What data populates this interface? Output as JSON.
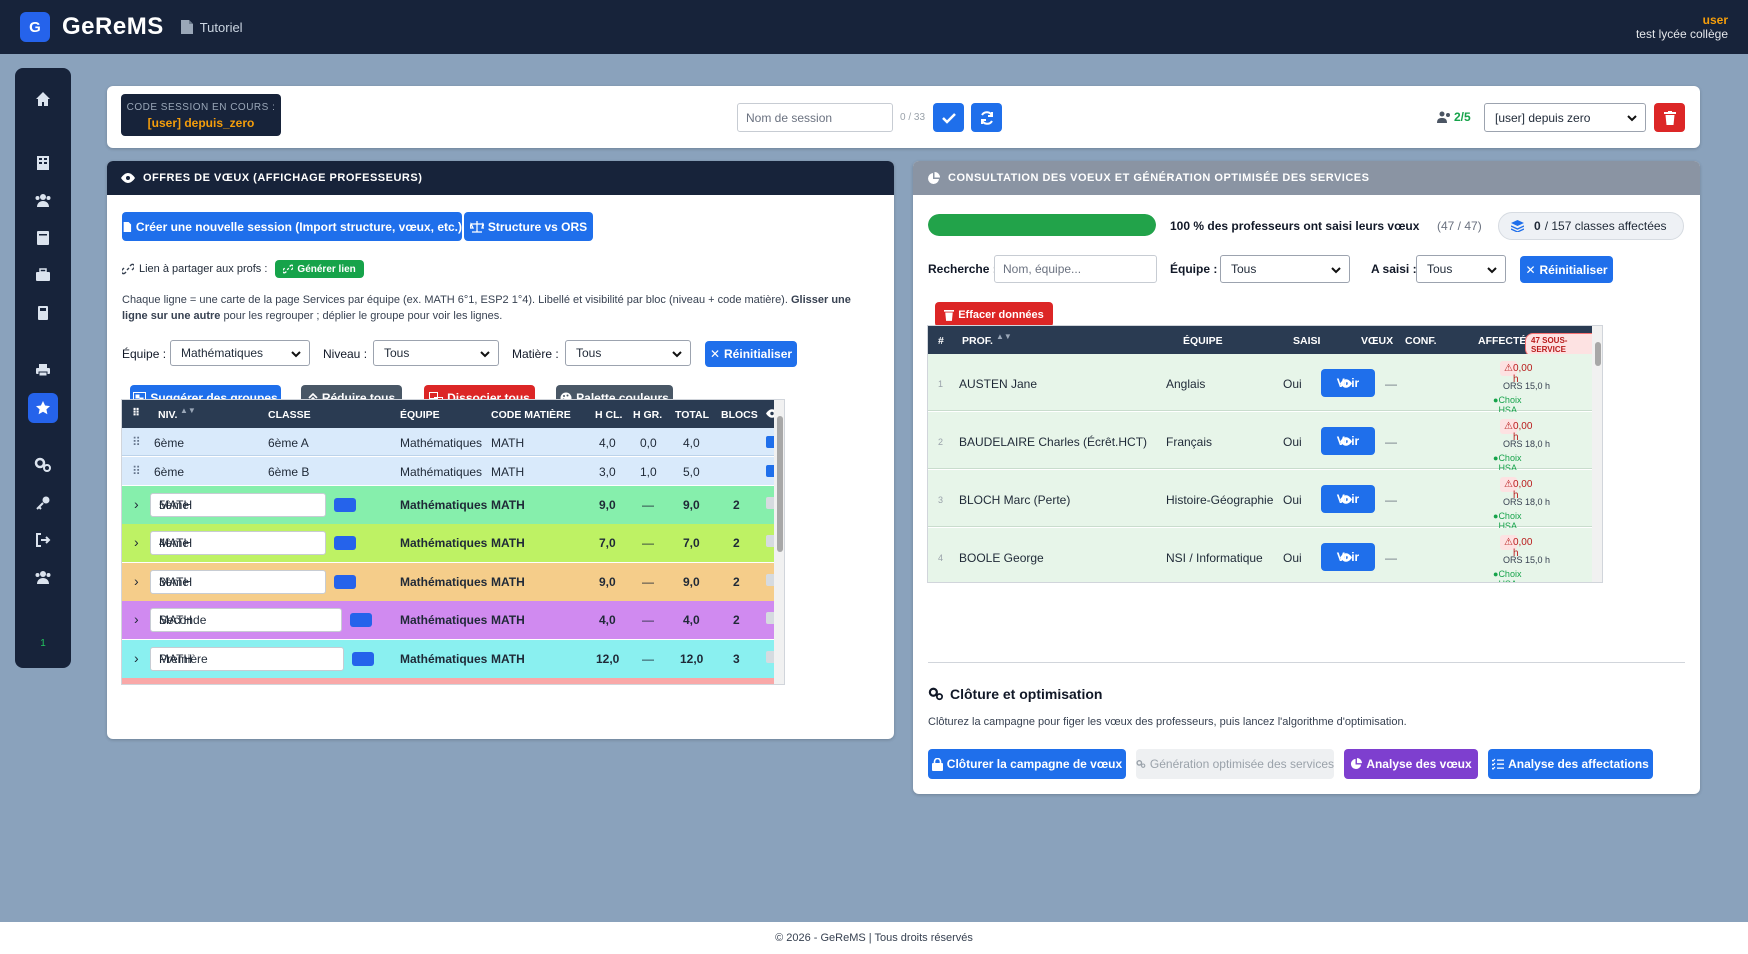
{
  "topbar": {
    "logo_letter": "G",
    "brand": "GeReMS",
    "tutorial": "Tutoriel",
    "user_name": "user",
    "user_school": "test lycée collège"
  },
  "sidebar": {
    "online_count": "1"
  },
  "session": {
    "code_label": "CODE SESSION EN COURS :",
    "code_value": "[user] depuis_zero",
    "name_placeholder": "Nom de session",
    "name_counter": "0 / 33",
    "users_count": "2/5",
    "selected_session": "[user] depuis zero"
  },
  "left_panel": {
    "title": "OFFRES DE VŒUX (AFFICHAGE PROFESSEURS)",
    "create_session_btn": "Créer une nouvelle session (Import structure, vœux, etc.)",
    "structure_btn": "Structure vs ORS",
    "share_label": "Lien à partager aux profs :",
    "generate_link_btn": "Générer lien",
    "help_1": "Chaque ligne = une carte de la page Services par équipe (ex. MATH 6°1, ESP2 1°4). Libellé et visibilité par bloc (niveau + code matière).",
    "help_bold_1": "Glisser une",
    "help_bold_2": "ligne sur une autre",
    "help_2": "pour les regrouper ; déplier le groupe pour voir les lignes.",
    "filters": {
      "equipe_label": "Équipe :",
      "equipe_value": "Mathématiques",
      "niveau_label": "Niveau :",
      "niveau_value": "Tous",
      "matiere_label": "Matière :",
      "matiere_value": "Tous",
      "reset_btn": "Réinitialiser"
    },
    "actions": {
      "suggest": "Suggérer des groupes",
      "collapse": "Réduire tous",
      "dissociate": "Dissocier tous",
      "palette": "Palette couleurs"
    },
    "table": {
      "headers": [
        "NIV.",
        "CLASSE",
        "ÉQUIPE",
        "CODE MATIÈRE",
        "H CL.",
        "H GR.",
        "TOTAL",
        "BLOCS"
      ],
      "rows": [
        {
          "niv": "6ème",
          "classe": "6ème A",
          "equipe": "Mathématiques",
          "code": "MATH",
          "hcl": "4,0",
          "hgr": "0,0",
          "total": "4,0"
        },
        {
          "niv": "6ème",
          "classe": "6ème B",
          "equipe": "Mathématiques",
          "code": "MATH",
          "hcl": "3,0",
          "hgr": "1,0",
          "total": "5,0"
        }
      ],
      "groups": [
        {
          "level": "5ème",
          "code_in": "MATH",
          "equipe": "Mathématiques",
          "code": "MATH",
          "hcl": "9,0",
          "hgr": "—",
          "total": "9,0",
          "blocs": "2",
          "color": "#86efac"
        },
        {
          "level": "4ème",
          "code_in": "MATH",
          "equipe": "Mathématiques",
          "code": "MATH",
          "hcl": "7,0",
          "hgr": "—",
          "total": "7,0",
          "blocs": "2",
          "color": "#bef264"
        },
        {
          "level": "3ème",
          "code_in": "MATH",
          "equipe": "Mathématiques",
          "code": "MATH",
          "hcl": "9,0",
          "hgr": "—",
          "total": "9,0",
          "blocs": "2",
          "color": "#f5cd8a"
        },
        {
          "level": "Seconde",
          "code_in": "MATH",
          "equipe": "Mathématiques",
          "code": "MATH",
          "hcl": "4,0",
          "hgr": "—",
          "total": "4,0",
          "blocs": "2",
          "color": "#d08af0"
        },
        {
          "level": "Première",
          "code_in": "MATH",
          "equipe": "Mathématiques",
          "code": "MATH",
          "hcl": "12,0",
          "hgr": "—",
          "total": "12,0",
          "blocs": "3",
          "color": "#8af0f0"
        }
      ]
    }
  },
  "right_panel": {
    "title": "CONSULTATION DES VOEUX ET GÉNÉRATION OPTIMISÉE DES SERVICES",
    "progress_percent": 100,
    "progress_text": "100 % des professeurs ont saisi leurs vœux",
    "progress_count": "(47 / 47)",
    "classes_assigned_bold": "0",
    "classes_assigned_rest": "/ 157 classes affectées",
    "search_label": "Recherche :",
    "search_placeholder": "Nom, équipe...",
    "equipe_label": "Équipe :",
    "equipe_value": "Tous",
    "asaisi_label": "A saisi :",
    "asaisi_value": "Tous",
    "reset_btn": "Réinitialiser",
    "clear_btn": "Effacer données",
    "table": {
      "headers": [
        "#",
        "PROF.",
        "ÉQUIPE",
        "SAISI",
        "VŒUX",
        "CONF.",
        "AFFECTÉ"
      ],
      "affecte_badge": "47 SOUS-SERVICE",
      "rows": [
        {
          "n": "1",
          "prof": "AUSTEN Jane",
          "equipe": "Anglais",
          "saisi": "Oui",
          "voir": "Voir",
          "conf": "—",
          "hours": "0,00 h",
          "ors": "ORS 15,0 h",
          "hsa": "Choix HSA OK"
        },
        {
          "n": "2",
          "prof": "BAUDELAIRE Charles (Écrêt.HCT)",
          "equipe": "Français",
          "saisi": "Oui",
          "voir": "Voir",
          "conf": "—",
          "hours": "0,00 h",
          "ors": "ORS 18,0 h",
          "hsa": "Choix HSA OK"
        },
        {
          "n": "3",
          "prof": "BLOCH Marc (Perte)",
          "equipe": "Histoire-Géographie",
          "saisi": "Oui",
          "voir": "Voir",
          "conf": "—",
          "hours": "0,00 h",
          "ors": "ORS 18,0 h",
          "hsa": "Choix HSA OK"
        },
        {
          "n": "4",
          "prof": "BOOLE George",
          "equipe": "NSI / Informatique",
          "saisi": "Oui",
          "voir": "Voir",
          "conf": "—",
          "hours": "0,00 h",
          "ors": "ORS 15,0 h",
          "hsa": "Choix HSA OK"
        }
      ]
    },
    "closure": {
      "title": "Clôture et optimisation",
      "desc": "Clôturez la campagne pour figer les vœux des professeurs, puis lancez l'algorithme d'optimisation.",
      "close_btn": "Clôturer la campagne de vœux",
      "gen_btn": "Génération optimisée des services",
      "analyse_voeux_btn": "Analyse des vœux",
      "analyse_aff_btn": "Analyse des affectations"
    }
  },
  "footer": {
    "text": "© 2026 - GeReMS | Tous droits réservés"
  }
}
